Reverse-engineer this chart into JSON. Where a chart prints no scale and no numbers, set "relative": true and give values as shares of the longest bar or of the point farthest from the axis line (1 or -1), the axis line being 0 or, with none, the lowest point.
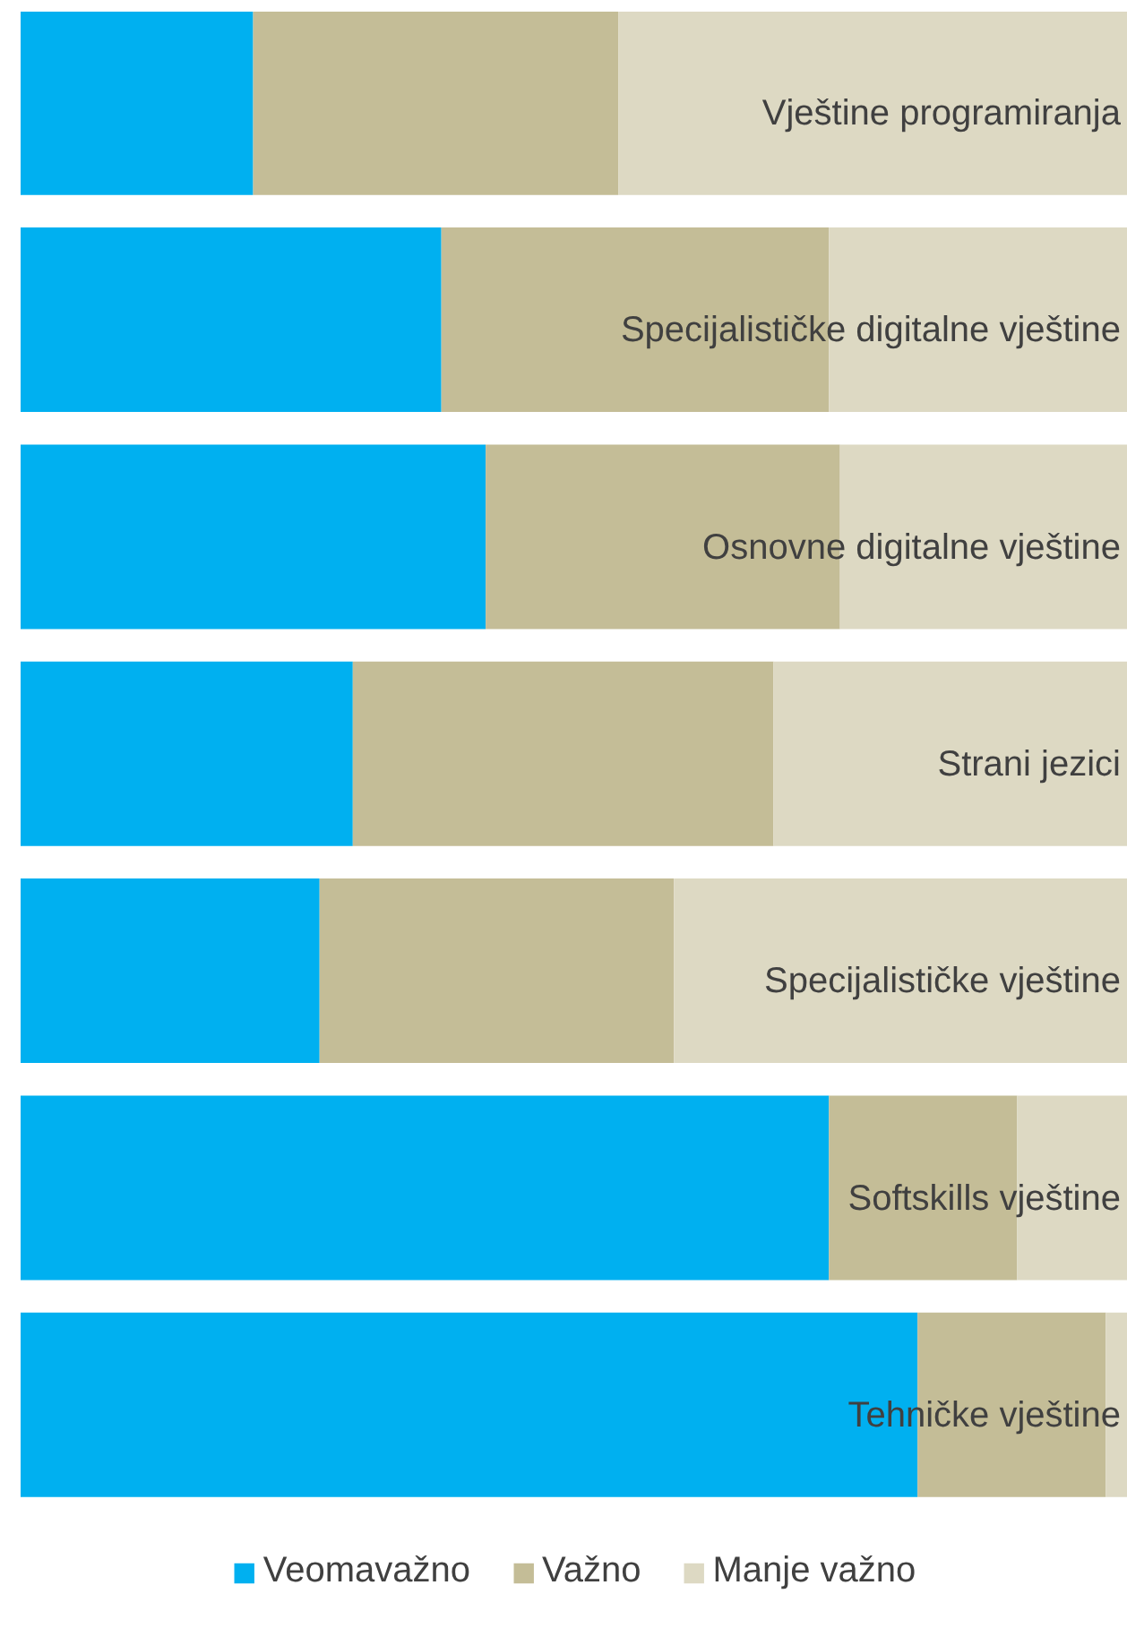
{
  "chart_data": {
    "type": "bar",
    "orientation": "horizontal",
    "stacked": true,
    "relative": true,
    "legend": "bottom",
    "grid": false,
    "categories": [
      "Vještine programiranja",
      "Specijalističke digitalne vještine",
      "Osnovne digitalne vještine",
      "Strani jezici",
      "Specijalističke vještine",
      "Softskills vještine",
      "Tehničke vještine"
    ],
    "series": [
      {
        "name": "Veomavažno",
        "color": "#00b0f0",
        "values": [
          0.21,
          0.38,
          0.42,
          0.3,
          0.27,
          0.73,
          0.81
        ]
      },
      {
        "name": "Važno",
        "color": "#c4bd97",
        "values": [
          0.33,
          0.35,
          0.32,
          0.38,
          0.32,
          0.17,
          0.17
        ]
      },
      {
        "name": "Manje važno",
        "color": "#ddd9c3",
        "values": [
          0.46,
          0.27,
          0.26,
          0.32,
          0.41,
          0.1,
          0.02
        ]
      }
    ]
  }
}
